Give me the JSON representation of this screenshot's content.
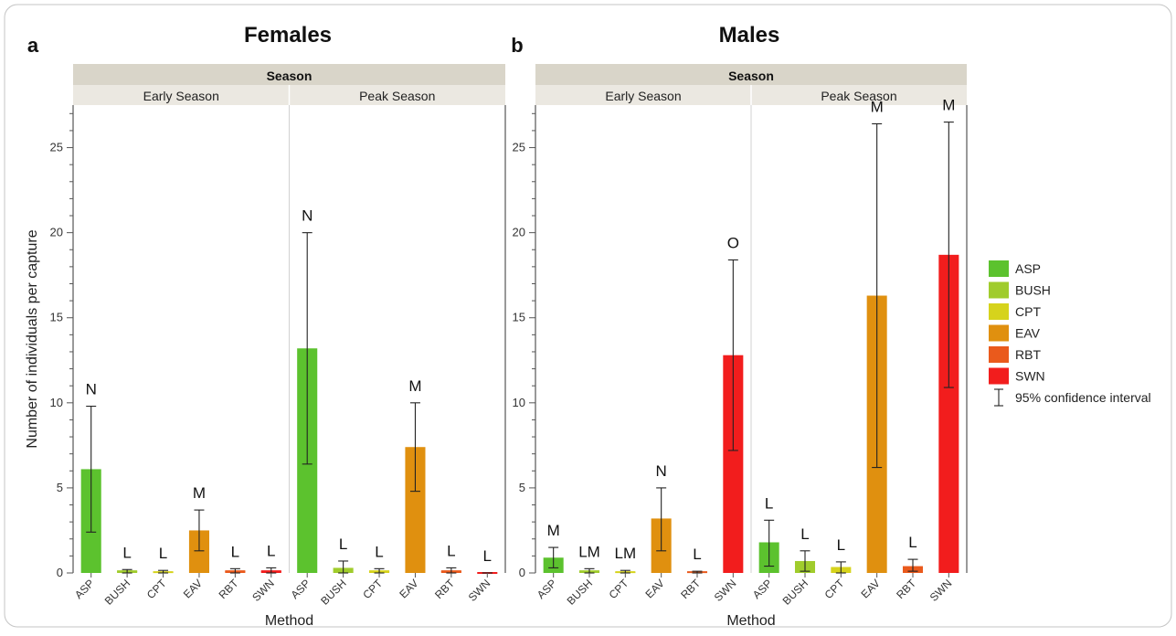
{
  "figure": {
    "legend": {
      "items": [
        {
          "label": "ASP",
          "color": "#5cc22e"
        },
        {
          "label": "BUSH",
          "color": "#a0cc2c"
        },
        {
          "label": "CPT",
          "color": "#d6d31c"
        },
        {
          "label": "EAV",
          "color": "#e0900f"
        },
        {
          "label": "RBT",
          "color": "#ea5a1c"
        },
        {
          "label": "SWN",
          "color": "#f21d1d"
        }
      ],
      "ci_label": "95% confidence interval"
    }
  },
  "chart_data": [
    {
      "type": "bar",
      "panel_letter": "a",
      "title": "Females",
      "facet_header": "Season",
      "facets": [
        "Early Season",
        "Peak Season"
      ],
      "categories": [
        "ASP",
        "BUSH",
        "CPT",
        "EAV",
        "RBT",
        "SWN"
      ],
      "ylabel": "Number of individuals per capture",
      "xlabel": "Method",
      "ylim": [
        0,
        27.5
      ],
      "yticks": [
        0,
        5,
        10,
        15,
        20,
        25
      ],
      "series": [
        {
          "facet": "Early Season",
          "values": [
            6.1,
            0.1,
            0.05,
            2.5,
            0.1,
            0.1
          ],
          "ci_low": [
            2.4,
            0.0,
            0.0,
            1.3,
            0.0,
            0.0
          ],
          "ci_high": [
            9.8,
            0.2,
            0.15,
            3.7,
            0.25,
            0.3
          ],
          "letters": [
            "N",
            "L",
            "L",
            "M",
            "L",
            "L"
          ]
        },
        {
          "facet": "Peak Season",
          "values": [
            13.2,
            0.3,
            0.1,
            7.4,
            0.1,
            0.0
          ],
          "ci_low": [
            6.4,
            0.0,
            0.0,
            4.8,
            0.0,
            0.0
          ],
          "ci_high": [
            20.0,
            0.7,
            0.25,
            10.0,
            0.3,
            0.0
          ],
          "letters": [
            "N",
            "L",
            "L",
            "M",
            "L",
            "L"
          ]
        }
      ]
    },
    {
      "type": "bar",
      "panel_letter": "b",
      "title": "Males",
      "facet_header": "Season",
      "facets": [
        "Early Season",
        "Peak Season"
      ],
      "categories": [
        "ASP",
        "BUSH",
        "CPT",
        "EAV",
        "RBT",
        "SWN"
      ],
      "ylabel": "",
      "xlabel": "Method",
      "ylim": [
        0,
        27.5
      ],
      "yticks": [
        0,
        5,
        10,
        15,
        20,
        25
      ],
      "series": [
        {
          "facet": "Early Season",
          "values": [
            0.9,
            0.1,
            0.05,
            3.2,
            0.05,
            12.8
          ],
          "ci_low": [
            0.3,
            0.0,
            0.0,
            1.3,
            0.0,
            7.2
          ],
          "ci_high": [
            1.5,
            0.25,
            0.15,
            5.0,
            0.1,
            18.4
          ],
          "letters": [
            "M",
            "LM",
            "LM",
            "N",
            "L",
            "O"
          ]
        },
        {
          "facet": "Peak Season",
          "values": [
            1.8,
            0.7,
            0.35,
            16.3,
            0.4,
            18.7
          ],
          "ci_low": [
            0.4,
            0.1,
            0.0,
            6.2,
            0.1,
            10.9
          ],
          "ci_high": [
            3.1,
            1.3,
            0.65,
            26.4,
            0.8,
            26.5
          ],
          "letters": [
            "L",
            "L",
            "L",
            "M",
            "L",
            "M"
          ]
        }
      ]
    }
  ]
}
